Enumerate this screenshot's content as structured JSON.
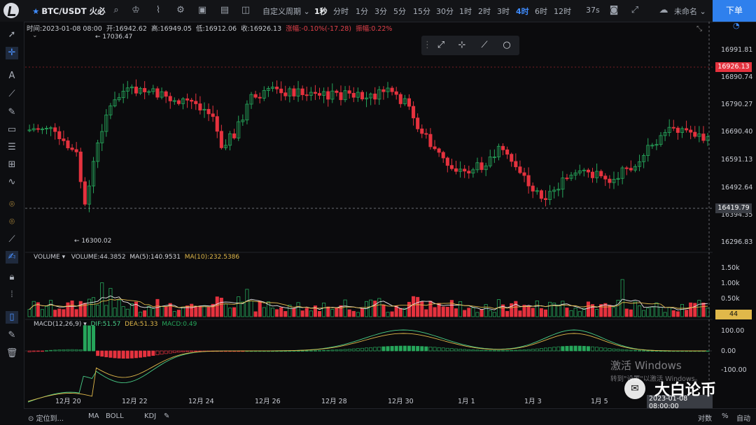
{
  "header": {
    "symbol": "BTC/USDT",
    "exchange": "火必",
    "intervals": [
      "自定义周期",
      "1秒",
      "分时",
      "1分",
      "3分",
      "5分",
      "15分",
      "30分",
      "1时",
      "2时",
      "3时",
      "4时",
      "6时",
      "12时"
    ],
    "active_interval": "4时",
    "countdown": "37s",
    "user": "未命名",
    "order_button": "下单"
  },
  "info": {
    "time": "时间:2023-01-08 08:00",
    "open": "开:16942.62",
    "high": "高:16949.05",
    "low": "低:16912.06",
    "close": "收:16926.13",
    "change": "涨幅:-0.10%(-17.28)",
    "amplitude": "振幅:0.22%"
  },
  "annotations": {
    "high": "17036.47",
    "low": "16300.02"
  },
  "price_axis": [
    "16991.81",
    "16890.74",
    "16790.27",
    "16690.40",
    "16591.13",
    "16492.64",
    "16394.35",
    "16296.83"
  ],
  "price_tags": {
    "current": "16926.13",
    "crosshair": "16419.79"
  },
  "volume": {
    "label": "VOLUME",
    "value": "VOLUME:44.3852",
    "ma5": "MA(5):140.9531",
    "ma10": "MA(10):232.5386",
    "axis": [
      "1.50k",
      "1.00k",
      "0.50k"
    ],
    "tag": "44"
  },
  "macd": {
    "label": "MACD(12,26,9)",
    "dif": "DIF:51.57",
    "dea": "DEA:51.33",
    "macd": "MACD:0.49",
    "axis": [
      "100.00",
      "0.00",
      "-100.00"
    ]
  },
  "x_axis": [
    "12月 20",
    "12月 22",
    "12月 24",
    "12月 26",
    "12月 28",
    "12月 30",
    "1月 1",
    "1月 3",
    "1月 5"
  ],
  "crosshair_time": "2023-01-08 08:00:00",
  "bottom": {
    "locate": "定位到...",
    "ma": "MA",
    "boll": "BOLL",
    "kdj": "KDJ",
    "log": "对数",
    "pct": "%",
    "auto": "自动"
  },
  "watermark": {
    "line1": "激活 Windows",
    "line2": "转到\"设置\"以激活 Windows。",
    "brand": "大白论币"
  },
  "colors": {
    "up": "#26a65b",
    "down": "#e5323e",
    "accent": "#2f80ed",
    "ma5": "#e8e8e8",
    "ma10": "#e0b84a"
  }
}
